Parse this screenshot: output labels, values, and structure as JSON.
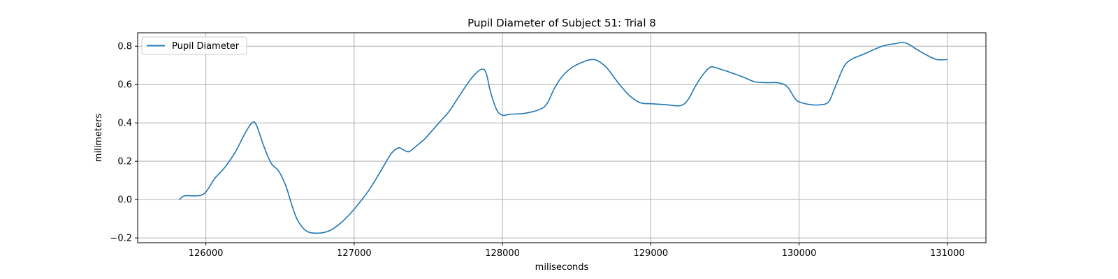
{
  "chart_data": {
    "type": "line",
    "title": "Pupil Diameter of Subject 51: Trial 8",
    "xlabel": "miliseconds",
    "ylabel": "milimeters",
    "xlim": [
      125540,
      131260
    ],
    "ylim": [
      -0.225,
      0.87
    ],
    "xticks": [
      126000,
      127000,
      128000,
      129000,
      130000,
      131000
    ],
    "yticks": [
      -0.2,
      0.0,
      0.2,
      0.4,
      0.6,
      0.8
    ],
    "xtick_labels": [
      "126000",
      "127000",
      "128000",
      "129000",
      "130000",
      "131000"
    ],
    "ytick_labels": [
      "−0.2",
      "0.0",
      "0.2",
      "0.4",
      "0.6",
      "0.8"
    ],
    "grid": true,
    "legend_position": "top-left",
    "series": [
      {
        "name": "Pupil Diameter",
        "color": "#1f77b4",
        "x": [
          125820,
          125860,
          125950,
          126000,
          126060,
          126130,
          126200,
          126260,
          126310,
          126340,
          126390,
          126440,
          126490,
          126540,
          126580,
          126620,
          126680,
          126760,
          126840,
          126920,
          127000,
          127100,
          127180,
          127250,
          127300,
          127330,
          127370,
          127420,
          127480,
          127560,
          127640,
          127700,
          127760,
          127810,
          127860,
          127890,
          127920,
          127960,
          128000,
          128050,
          128150,
          128250,
          128300,
          128350,
          128400,
          128470,
          128550,
          128600,
          128640,
          128700,
          128750,
          128800,
          128860,
          128930,
          129000,
          129100,
          129200,
          129250,
          129300,
          129350,
          129400,
          129430,
          129470,
          129530,
          129620,
          129700,
          129780,
          129850,
          129900,
          129930,
          129970,
          130000,
          130080,
          130150,
          130200,
          130240,
          130300,
          130350,
          130440,
          130560,
          130660,
          130700,
          130740,
          130800,
          130870,
          130930,
          131000
        ],
        "y": [
          0.0,
          0.02,
          0.02,
          0.04,
          0.11,
          0.17,
          0.25,
          0.34,
          0.4,
          0.39,
          0.28,
          0.19,
          0.15,
          0.07,
          -0.03,
          -0.11,
          -0.165,
          -0.175,
          -0.16,
          -0.115,
          -0.05,
          0.05,
          0.15,
          0.24,
          0.27,
          0.26,
          0.25,
          0.28,
          0.32,
          0.39,
          0.46,
          0.53,
          0.6,
          0.65,
          0.68,
          0.66,
          0.56,
          0.47,
          0.44,
          0.445,
          0.45,
          0.47,
          0.5,
          0.58,
          0.64,
          0.69,
          0.72,
          0.73,
          0.725,
          0.69,
          0.64,
          0.59,
          0.54,
          0.505,
          0.5,
          0.495,
          0.49,
          0.52,
          0.59,
          0.65,
          0.69,
          0.69,
          0.68,
          0.665,
          0.64,
          0.615,
          0.61,
          0.61,
          0.6,
          0.58,
          0.53,
          0.51,
          0.495,
          0.495,
          0.51,
          0.58,
          0.69,
          0.73,
          0.76,
          0.8,
          0.815,
          0.82,
          0.81,
          0.78,
          0.75,
          0.73,
          0.73
        ]
      }
    ]
  }
}
